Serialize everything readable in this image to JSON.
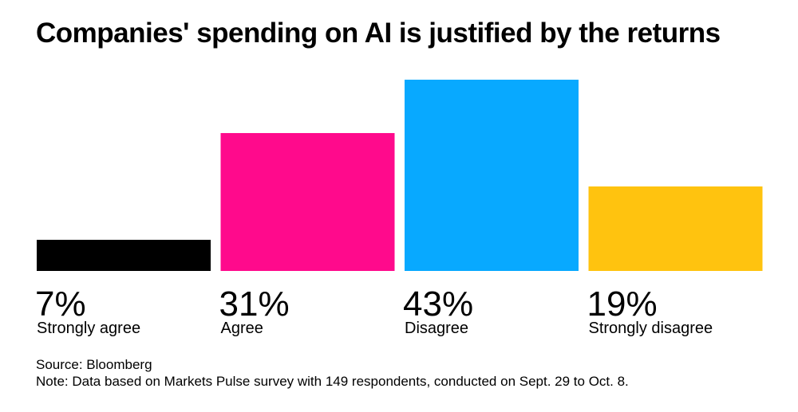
{
  "title": "Companies' spending on AI is justified by the returns",
  "source": "Source: Bloomberg",
  "note": "Note: Data based on Markets Pulse survey with 149 respondents, conducted on Sept. 29 to Oct. 8.",
  "chart_data": {
    "type": "bar",
    "title": "Companies' spending on AI is justified by the returns",
    "categories": [
      "Strongly agree",
      "Agree",
      "Disagree",
      "Strongly disagree"
    ],
    "values": [
      7,
      31,
      43,
      19
    ],
    "value_labels": [
      "7%",
      "31%",
      "43%",
      "19%"
    ],
    "colors": [
      "#000000",
      "#ff0a8c",
      "#08a9ff",
      "#ffc30f"
    ],
    "unit": "%",
    "xlabel": "",
    "ylabel": "",
    "ylim": [
      0,
      43
    ],
    "grid": false,
    "legend": "none"
  }
}
